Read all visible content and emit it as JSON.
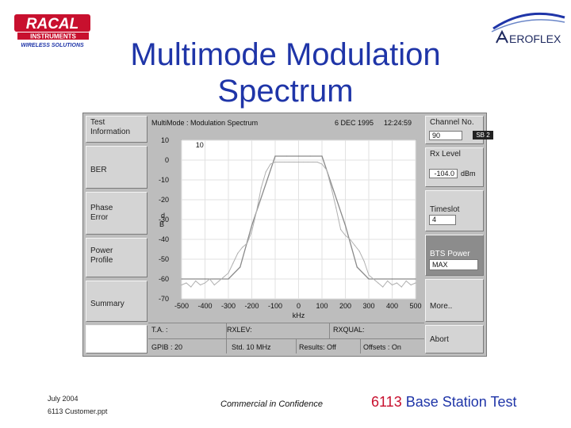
{
  "slide": {
    "title_line1": "Multimode Modulation",
    "title_line2": "Spectrum",
    "footer_date": "July 2004",
    "footer_file": "6113 Customer.ppt",
    "footer_center": "Commercial in Confidence",
    "footer_right_num": "6113",
    "footer_right_text": " Base Station Test"
  },
  "logos": {
    "racal_main": "RACAL",
    "racal_sub": "INSTRUMENTS",
    "racal_tag": "WIRELESS SOLUTIONS",
    "aeroflex": "EROFLEX"
  },
  "left_softkeys": {
    "test_info_line1": "Test",
    "test_info_line2": "Information",
    "ber": "BER",
    "phase_line1": "Phase",
    "phase_line2": "Error",
    "power_line1": "Power",
    "power_line2": "Profile",
    "summary": "Summary"
  },
  "header": {
    "mode": "MultiMode : Modulation Spectrum",
    "date": "6  DEC 1995",
    "time": "12:24:59"
  },
  "right_panel": {
    "channel_label": "Channel No.",
    "channel_value": "90",
    "badge": "SB 2",
    "rx_label": "Rx  Level",
    "rx_value": "-104.0",
    "rx_unit": "dBm",
    "timeslot_label": "Timeslot",
    "timeslot_value": "4",
    "bts_label": "BTS Power",
    "bts_value": "MAX",
    "more": "More..",
    "abort": "Abort"
  },
  "status": {
    "ta": "T.A. :",
    "rxlev": "RXLEV:",
    "rxqual": "RXQUAL:",
    "gpib": "GPIB :  20",
    "std": "Std.  10 MHz",
    "results": "Results: Off",
    "offsets": "Offsets : On"
  },
  "chart_data": {
    "type": "line",
    "ylabel": "dB",
    "xlabel": "kHz",
    "xlim": [
      -500,
      500
    ],
    "ylim": [
      -70,
      10
    ],
    "x_ticks": [
      "-500",
      "-400",
      "-300",
      "-200",
      "-100",
      "0",
      "100",
      "200",
      "300",
      "400",
      "500"
    ],
    "y_ticks": [
      "10",
      "0",
      "-10",
      "-20",
      "-30",
      "-40",
      "-50",
      "-60",
      "-70"
    ],
    "annotation": "10",
    "grid": true,
    "series": [
      {
        "role": "mask",
        "x": [
          -500,
          -400,
          -300,
          -250,
          -200,
          -100,
          -50,
          0,
          50,
          100,
          200,
          250,
          300,
          400,
          500
        ],
        "y": [
          -60,
          -60,
          -60,
          -54,
          -33,
          2,
          2,
          2,
          2,
          2,
          -33,
          -54,
          -60,
          -60,
          -60
        ]
      },
      {
        "role": "measured",
        "x": [
          -500,
          -480,
          -460,
          -440,
          -420,
          -400,
          -380,
          -360,
          -340,
          -320,
          -300,
          -280,
          -260,
          -240,
          -220,
          -200,
          -180,
          -160,
          -140,
          -120,
          -100,
          -80,
          -60,
          -40,
          -20,
          0,
          20,
          40,
          60,
          80,
          100,
          120,
          140,
          160,
          180,
          200,
          220,
          240,
          260,
          280,
          300,
          320,
          340,
          360,
          380,
          400,
          420,
          440,
          460,
          480,
          500
        ],
        "y": [
          -63,
          -62,
          -64,
          -61,
          -63,
          -62,
          -60,
          -63,
          -61,
          -59,
          -57,
          -52,
          -47,
          -44,
          -42,
          -36,
          -26,
          -14,
          -6,
          -2,
          -1,
          -1,
          -1,
          -1,
          -1,
          -1,
          -1,
          -1,
          -1,
          -1,
          -2,
          -5,
          -14,
          -24,
          -35,
          -38,
          -40,
          -43,
          -46,
          -51,
          -58,
          -60,
          -62,
          -64,
          -61,
          -63,
          -62,
          -64,
          -61,
          -63,
          -62
        ]
      }
    ]
  }
}
